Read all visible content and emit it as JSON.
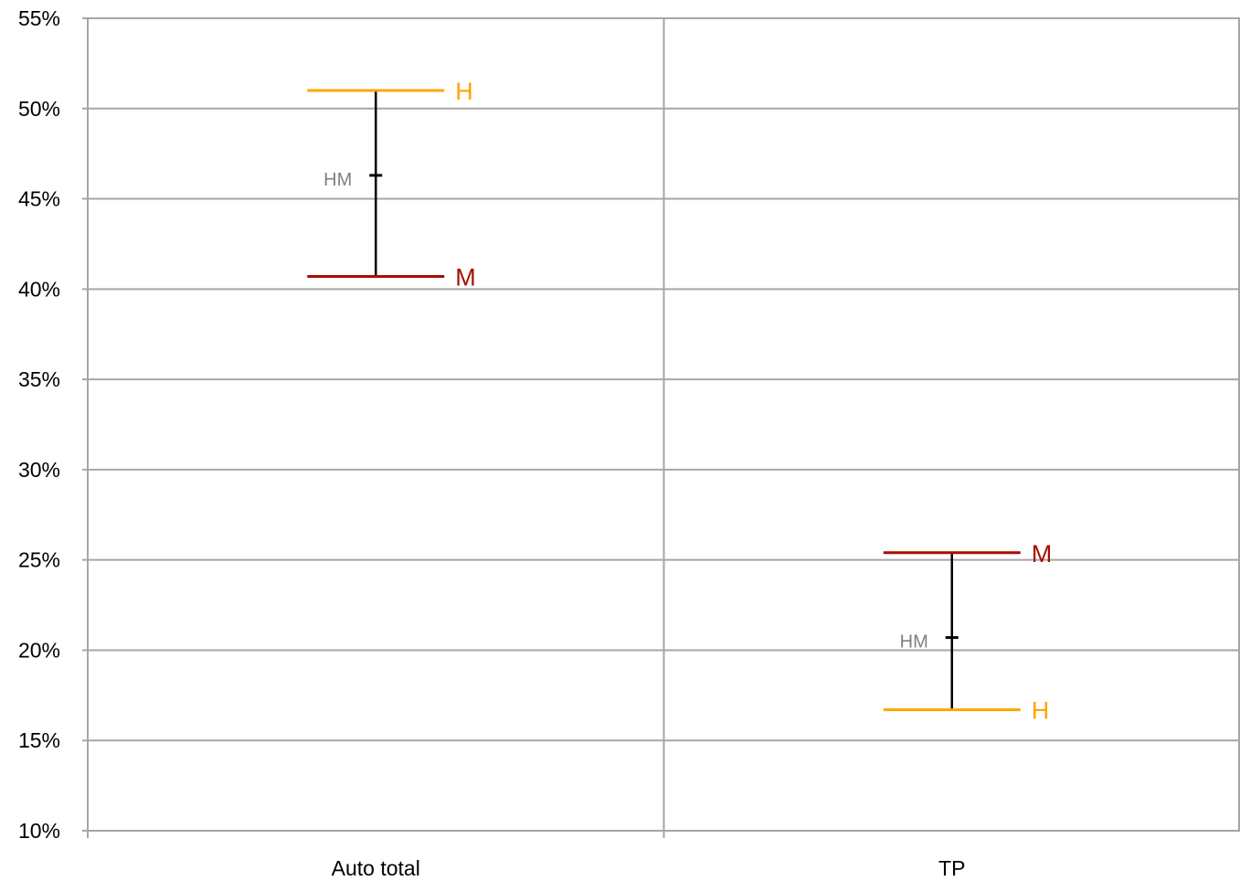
{
  "chart_data": {
    "type": "range",
    "y_axis": {
      "min": 0.1,
      "max": 0.55,
      "step": 0.05,
      "ticks": [
        "10%",
        "15%",
        "20%",
        "25%",
        "30%",
        "35%",
        "40%",
        "45%",
        "50%",
        "55%"
      ],
      "grid": true
    },
    "categories": [
      "Auto total",
      "TP"
    ],
    "series": [
      {
        "name": "H",
        "color": "#ffa500",
        "values": [
          0.51,
          0.167
        ]
      },
      {
        "name": "M",
        "color": "#a50f00",
        "values": [
          0.407,
          0.254
        ]
      },
      {
        "name": "HM",
        "color": "#000000",
        "label_color": "#808080",
        "values": [
          0.463,
          0.207
        ]
      }
    ],
    "colors": {
      "grid": "#a6a6a6",
      "axis": "#a6a6a6",
      "range_line": "#000000"
    }
  }
}
